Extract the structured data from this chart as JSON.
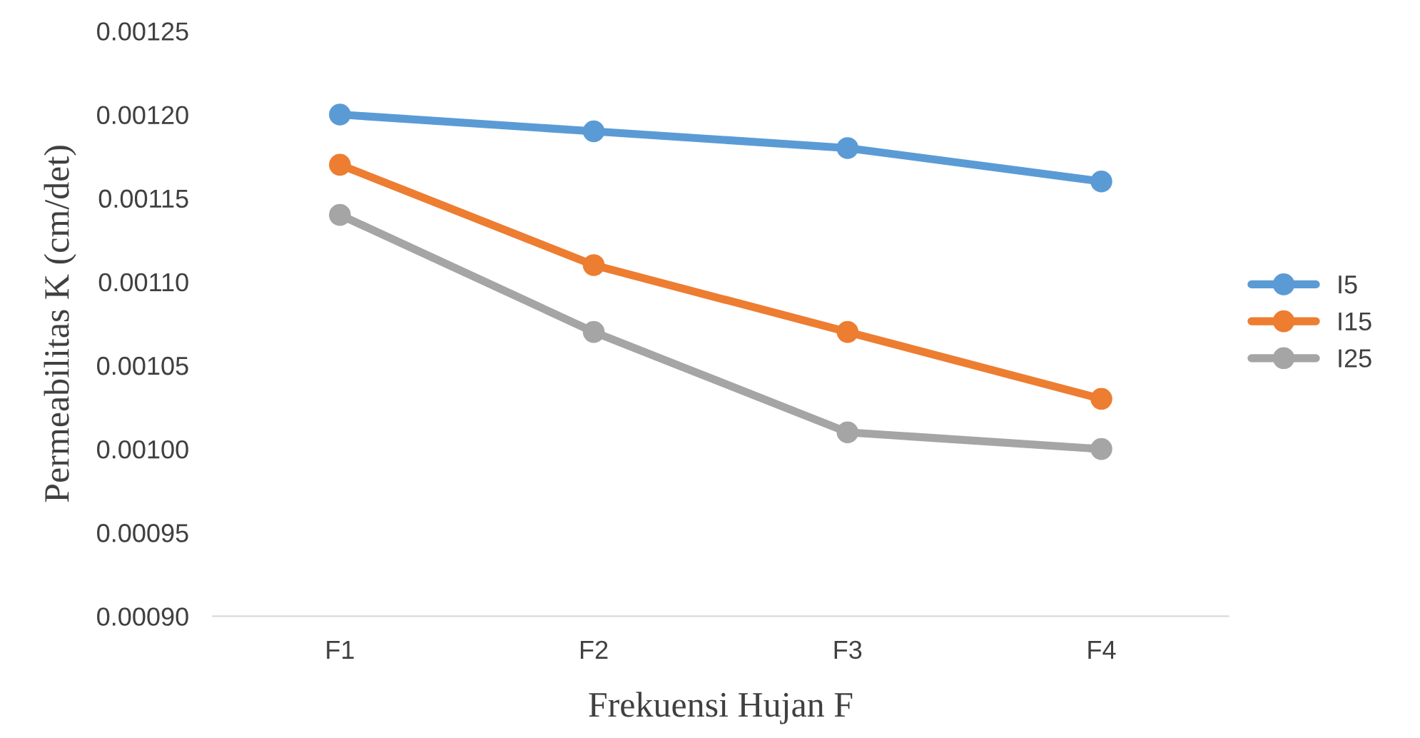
{
  "chart_data": {
    "type": "line",
    "xlabel": "Frekuensi Hujan F",
    "ylabel": "Permeabilitas K (cm/det)",
    "categories": [
      "F1",
      "F2",
      "F3",
      "F4"
    ],
    "series": [
      {
        "name": "I5",
        "color": "#5b9bd5",
        "values": [
          0.0012,
          0.00119,
          0.00118,
          0.00116
        ]
      },
      {
        "name": "I15",
        "color": "#ed7d31",
        "values": [
          0.00117,
          0.00111,
          0.00107,
          0.00103
        ]
      },
      {
        "name": "I25",
        "color": "#a5a5a5",
        "values": [
          0.00114,
          0.00107,
          0.00101,
          0.001
        ]
      }
    ],
    "ylim": [
      0.0009,
      0.00125
    ],
    "yticks": [
      {
        "value": 0.0009,
        "label": "0.00090"
      },
      {
        "value": 0.00095,
        "label": "0.00095"
      },
      {
        "value": 0.001,
        "label": "0.00100"
      },
      {
        "value": 0.00105,
        "label": "0.00105"
      },
      {
        "value": 0.0011,
        "label": "0.00110"
      },
      {
        "value": 0.00115,
        "label": "0.00115"
      },
      {
        "value": 0.0012,
        "label": "0.00120"
      },
      {
        "value": 0.00125,
        "label": "0.00125"
      }
    ],
    "grid": false,
    "legend": "right",
    "marker": "circle",
    "line_style": "solid"
  }
}
